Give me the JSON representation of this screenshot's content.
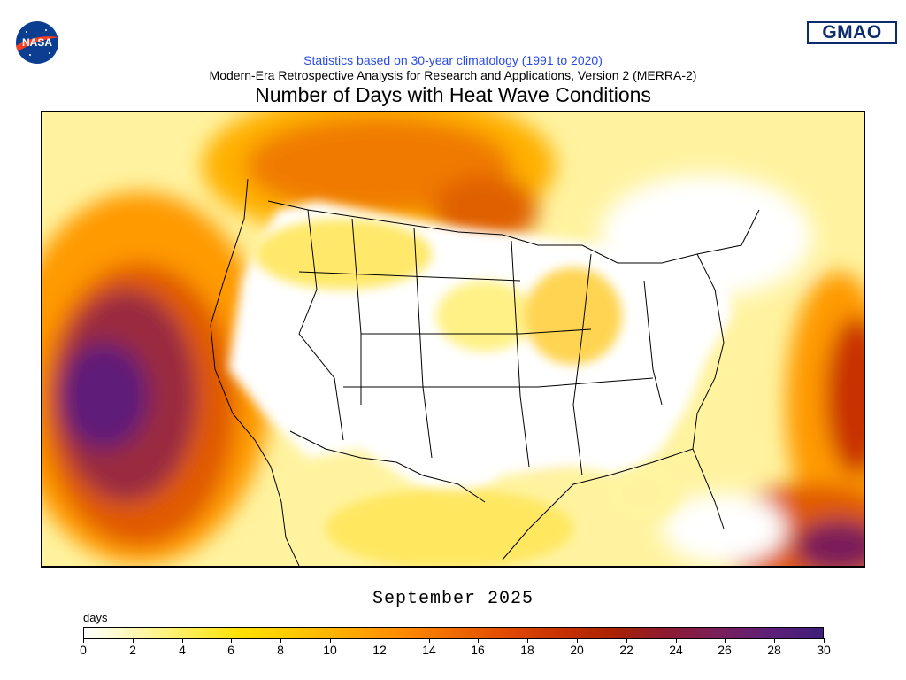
{
  "header": {
    "logo_left": "NASA",
    "logo_right": "GMAO",
    "subtitle": "Statistics based on 30-year climatology (1991 to 2020)",
    "dataset": "Modern-Era Retrospective Analysis for Research and Applications, Version 2 (MERRA-2)",
    "title": "Number of Days with Heat Wave Conditions"
  },
  "map": {
    "period": "September 2025",
    "region": "Contiguous United States and surrounding areas"
  },
  "colorbar": {
    "units": "days",
    "min": 0,
    "max": 30,
    "ticks": [
      "0",
      "2",
      "4",
      "6",
      "8",
      "10",
      "12",
      "14",
      "16",
      "18",
      "20",
      "22",
      "24",
      "26",
      "28",
      "30"
    ],
    "colors": [
      "#ffffff",
      "#fff7b0",
      "#ffee55",
      "#ffe000",
      "#ffc800",
      "#ffaa00",
      "#ff8c00",
      "#f06a00",
      "#e04a00",
      "#c83200",
      "#aa2200",
      "#8e1a30",
      "#7a1f5a",
      "#5e1f78",
      "#3f1f7a"
    ]
  }
}
